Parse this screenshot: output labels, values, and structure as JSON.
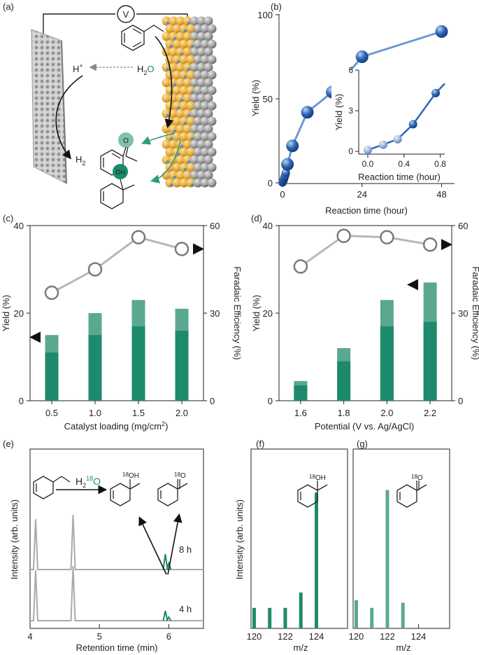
{
  "colors": {
    "axis": "#222222",
    "blue_dark": "#2f66b8",
    "blue_line": "#6f97cf",
    "blue_light": "#a8c3e6",
    "teal_dark": "#1e8a6c",
    "teal_light": "#5ba891",
    "gray_line": "#b7b7b7",
    "gray_marker": "#7a7a7a",
    "chrom_gray": "#aaaaaa",
    "gold": "#e5a835",
    "water_blue": "#4a90d9"
  },
  "panel_a": {
    "label": "(a)",
    "voltmeter": "V",
    "proton": "H",
    "proton_sup": "+",
    "water_pre": "H",
    "water_sub": "2",
    "water_o": "O",
    "hydrogen": "H",
    "hydrogen_sub": "2",
    "ketone_o": "O",
    "alcohol_oh": "OH"
  },
  "panel_e": {
    "label": "(e)",
    "water_label_h": "H",
    "water_label_sub": "2",
    "water_label_sup": "18",
    "water_label_o": "O",
    "alcohol_sup": "18",
    "alcohol_oh": "OH",
    "ketone_sup": "18",
    "ketone_o": "O"
  },
  "panel_f_struct": {
    "sup": "18",
    "text": "OH"
  },
  "panel_g_struct": {
    "sup": "18",
    "text": "O"
  },
  "chart_data": [
    {
      "panel": "(b)",
      "type": "line",
      "title": "",
      "xlabel": "Reaction time (hour)",
      "ylabel": "Yield (%)",
      "xlim": [
        0,
        50
      ],
      "ylim": [
        0,
        100
      ],
      "xticks": [
        "0",
        "24",
        "48"
      ],
      "yticks": [
        "0",
        "50",
        "100"
      ],
      "x": [
        0,
        0.1,
        0.2,
        0.3,
        0.4,
        0.5,
        0.6,
        0.8,
        1.0,
        1.5,
        3,
        7.5,
        15,
        24,
        48
      ],
      "y": [
        0.2,
        0.7,
        1.2,
        1.5,
        2.0,
        2.7,
        3.5,
        4.3,
        6,
        11,
        22,
        42,
        54,
        75,
        90
      ],
      "inset": {
        "xlabel": "Reaction time (hour)",
        "ylabel": "Yield (%)",
        "xlim": [
          -0.1,
          0.85
        ],
        "ylim": [
          -0.2,
          6
        ],
        "xticks": [
          "0.0",
          "0.4",
          "0.8"
        ],
        "yticks": [
          "0",
          "3",
          "6"
        ],
        "x": [
          0,
          0.17,
          0.33,
          0.5,
          0.75,
          0.85
        ],
        "y": [
          0.1,
          0.5,
          0.9,
          2.0,
          4.3,
          5.0
        ],
        "points_drawn": 5
      }
    },
    {
      "panel": "(c)",
      "type": "bar",
      "xlabel": "Catalyst loading (mg/cm",
      "xlabel_sup": "2",
      "xlabel_end": ")",
      "ylabel": "Yield (%)",
      "y2label": "Faradaic Efficiency (%)",
      "categories": [
        "0.5",
        "1.0",
        "1.5",
        "2.0"
      ],
      "ylim": [
        0,
        40
      ],
      "yticks": [
        "0",
        "20",
        "40"
      ],
      "y2lim": [
        0,
        60
      ],
      "y2ticks": [
        "0",
        "30",
        "60"
      ],
      "series": [
        {
          "name": "total yield",
          "values": [
            15,
            20,
            23,
            21
          ]
        },
        {
          "name": "alcohol yield",
          "values": [
            11,
            15,
            17,
            16
          ]
        },
        {
          "name": "Faradaic efficiency",
          "axis": "right",
          "values": [
            37,
            45,
            56,
            52
          ]
        }
      ],
      "arrow_left_yield": 14.5,
      "arrow_right_fe": 52
    },
    {
      "panel": "(d)",
      "type": "bar",
      "xlabel": "Potential (V vs. Ag/AgCl)",
      "ylabel": "Yield (%)",
      "y2label": "Faradaic Efficiency (%)",
      "categories": [
        "1.6",
        "1.8",
        "2.0",
        "2.2"
      ],
      "ylim": [
        0,
        40
      ],
      "yticks": [
        "0",
        "20",
        "40"
      ],
      "y2lim": [
        0,
        60
      ],
      "y2ticks": [
        "0",
        "30",
        "60"
      ],
      "series": [
        {
          "name": "total yield",
          "values": [
            4.5,
            12,
            23,
            27
          ]
        },
        {
          "name": "alcohol yield",
          "values": [
            3.5,
            9,
            17,
            18
          ]
        },
        {
          "name": "Faradaic efficiency",
          "axis": "right",
          "values": [
            46,
            56.5,
            56,
            53.5
          ]
        }
      ],
      "arrow_left_yield": 26.5,
      "arrow_right_fe": 53.5
    },
    {
      "panel": "(e)",
      "type": "line",
      "xlabel": "Retention time (min)",
      "ylabel": "Intensity (arb. units)",
      "xlim": [
        4,
        6.5
      ],
      "xticks": [
        "4",
        "5",
        "6"
      ],
      "traces": [
        {
          "name": "8 h",
          "label": "8 h"
        },
        {
          "name": "4 h",
          "label": "4 h"
        }
      ],
      "peaks_gray": [
        4.08,
        4.62
      ],
      "peaks_teal": [
        5.95,
        6.0
      ]
    },
    {
      "panel": "(f)",
      "type": "bar",
      "xlabel": "m/z",
      "ylabel": "Intensity (arb. units)",
      "xlim": [
        119.8,
        126
      ],
      "xticks": [
        "120",
        "122",
        "124"
      ],
      "x": [
        120,
        121,
        122,
        123,
        124
      ],
      "values": [
        8,
        8,
        8,
        14,
        53
      ]
    },
    {
      "panel": "(g)",
      "type": "bar",
      "xlabel": "m/z",
      "ylabel": "",
      "xlim": [
        119.8,
        126
      ],
      "xticks": [
        "120",
        "122",
        "124"
      ],
      "x": [
        120,
        121,
        122,
        123
      ],
      "values": [
        11,
        8,
        54,
        10
      ]
    }
  ]
}
